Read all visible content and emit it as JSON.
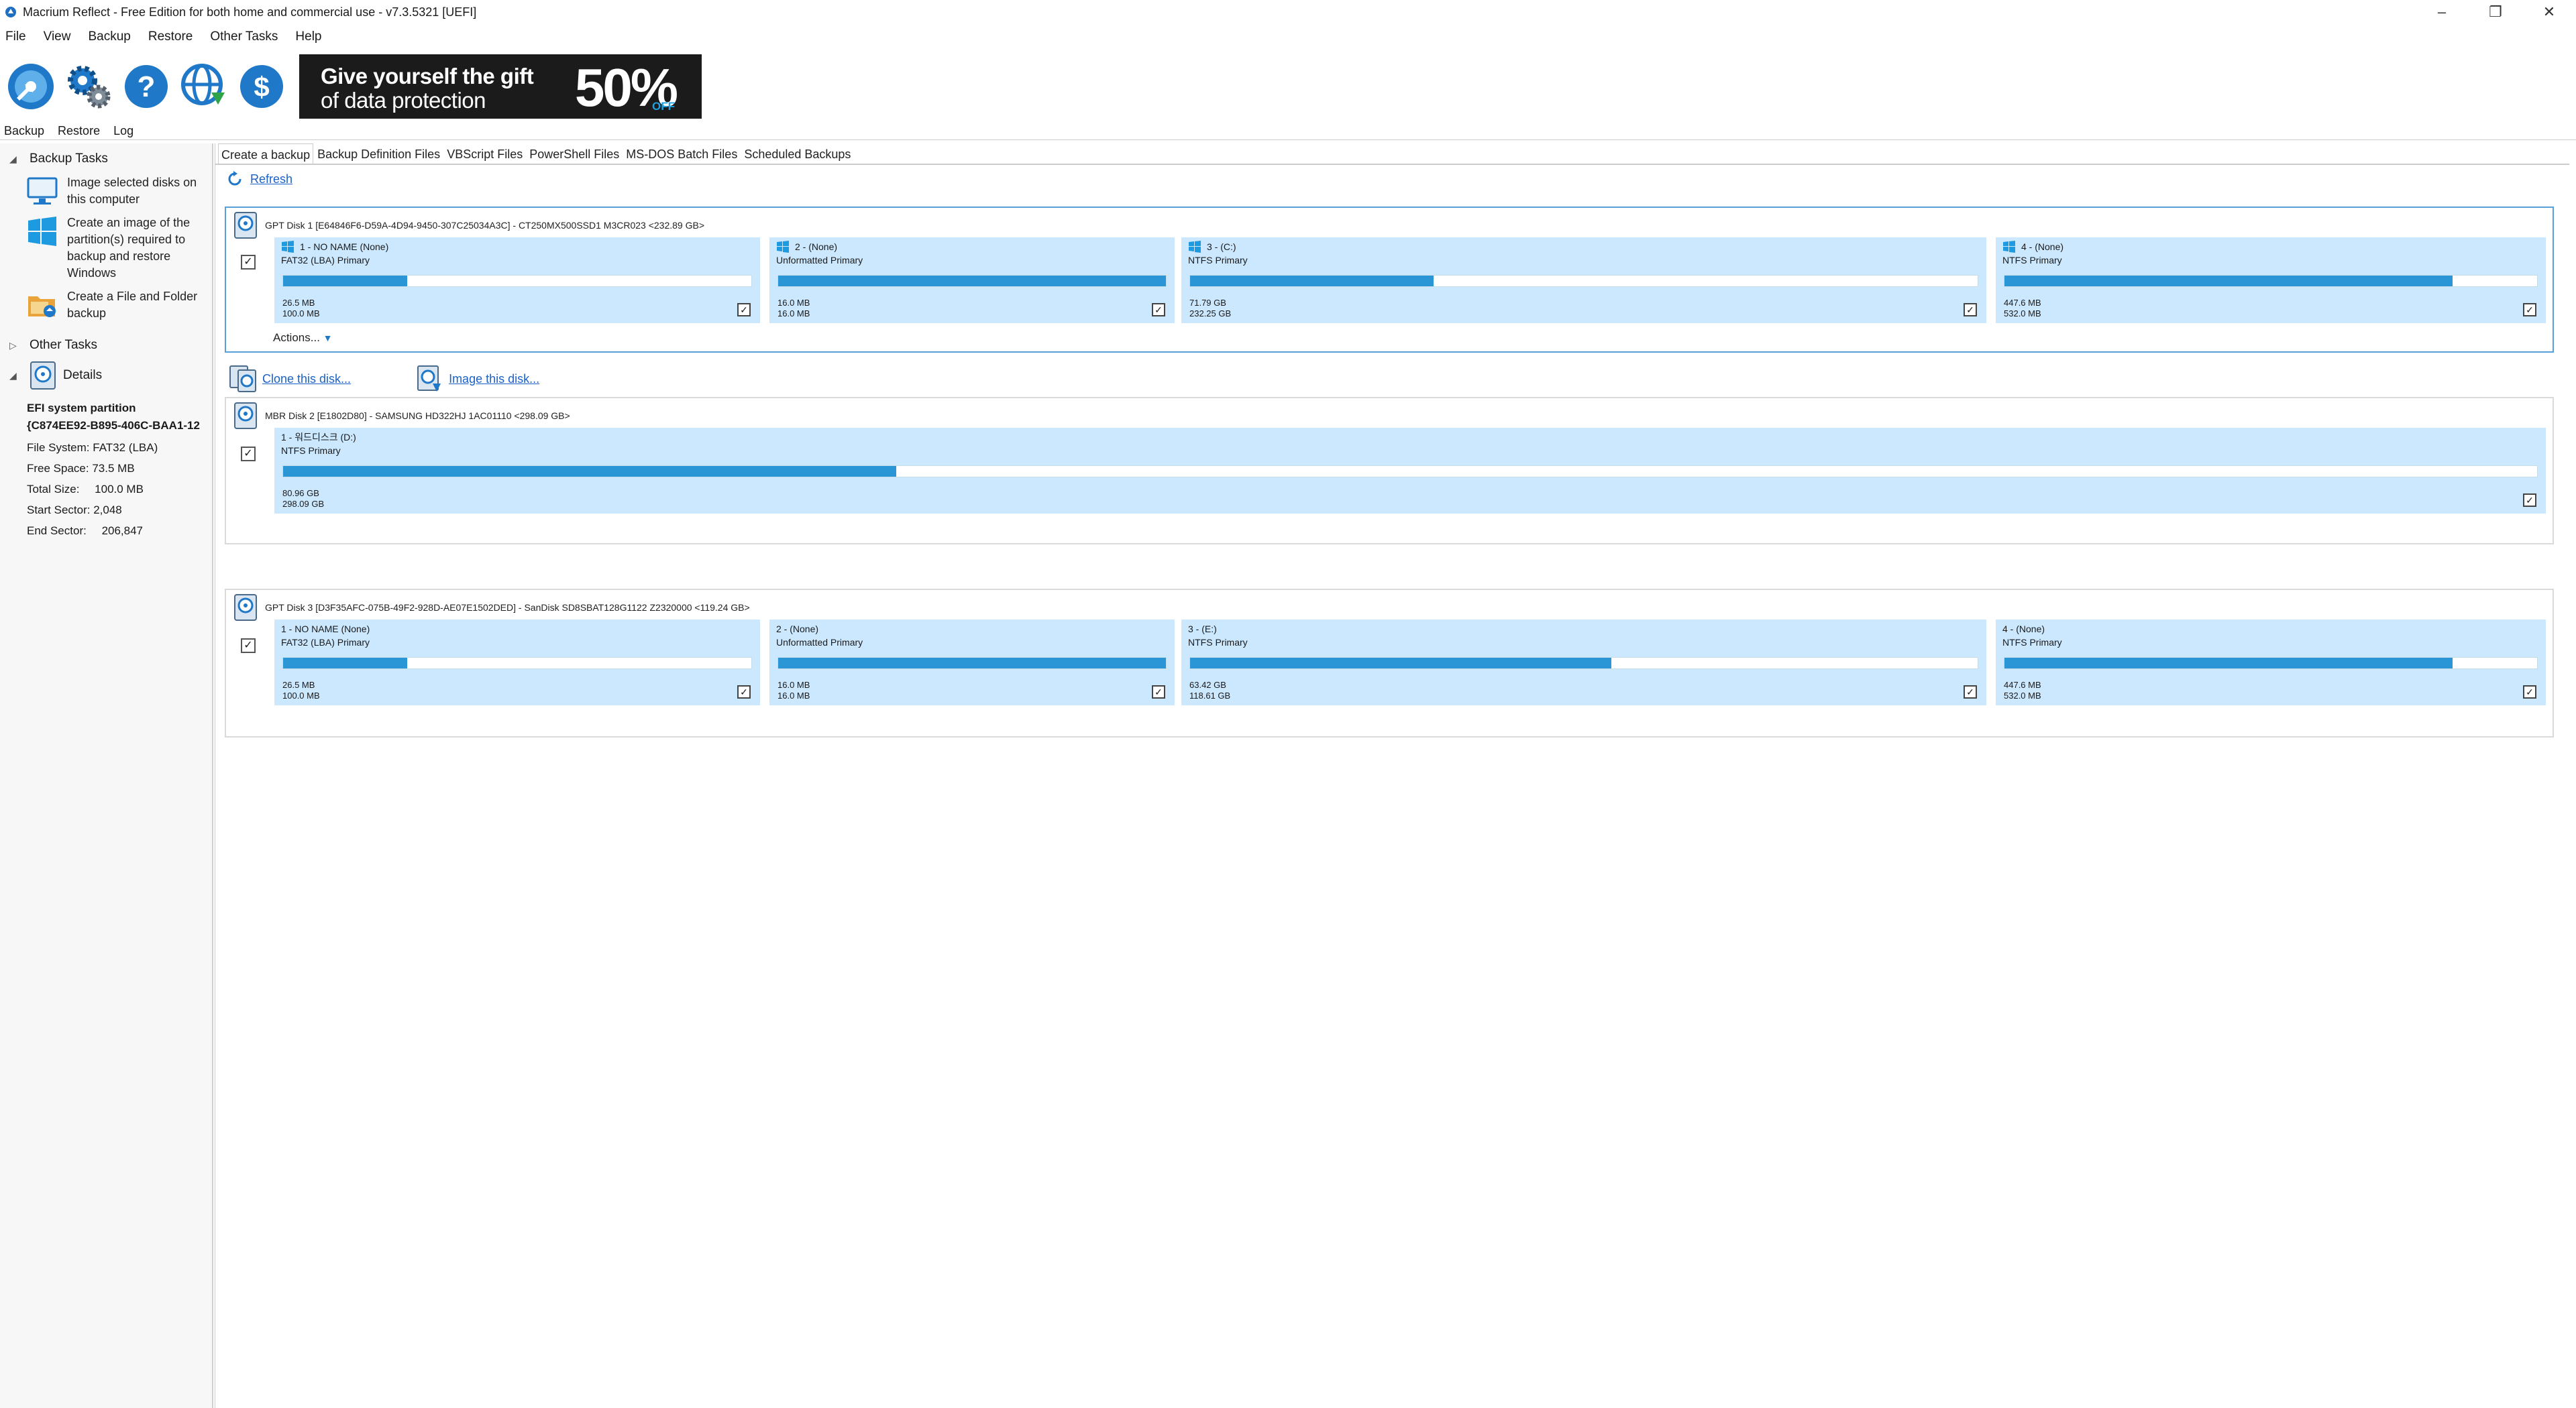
{
  "window": {
    "title": "Macrium Reflect - Free Edition for both home and commercial use - v7.3.5321  [UEFI]",
    "minimize": "–",
    "restore": "❐",
    "close": "✕"
  },
  "menu": [
    "File",
    "View",
    "Backup",
    "Restore",
    "Other Tasks",
    "Help"
  ],
  "banner": {
    "line1": "Give yourself the gift",
    "line2": "of data protection",
    "percent": "50%",
    "off": "OFF"
  },
  "view_tabs": [
    "Backup",
    "Restore",
    "Log"
  ],
  "left": {
    "backup_tasks_header": "Backup Tasks",
    "tasks": [
      {
        "label": "Image selected disks on this computer",
        "icon": "monitor-icon"
      },
      {
        "label": "Create an image of the partition(s) required to backup and restore Windows",
        "icon": "windows-logo-icon"
      },
      {
        "label": "Create a File and Folder backup",
        "icon": "folder-icon"
      }
    ],
    "other_tasks_header": "Other Tasks",
    "details_header": "Details",
    "details": {
      "title": "EFI system partition",
      "guid": "{C874EE92-B895-406C-BAA1-12",
      "rows": [
        {
          "label": "File System:",
          "value": "FAT32 (LBA)"
        },
        {
          "label": "Free Space:",
          "value": "73.5 MB"
        },
        {
          "label": "Total Size:",
          "value": "100.0 MB"
        },
        {
          "label": "Start Sector:",
          "value": "2,048"
        },
        {
          "label": "End Sector:",
          "value": "206,847"
        }
      ]
    }
  },
  "tabs": [
    "Create a backup",
    "Backup Definition Files",
    "VBScript Files",
    "PowerShell Files",
    "MS-DOS Batch Files",
    "Scheduled Backups"
  ],
  "refresh_label": "Refresh",
  "actions_label": "Actions...",
  "clone_label": "Clone this disk...",
  "image_label": "Image this disk...",
  "check": "✓",
  "accent": "#2a96d5",
  "disks": [
    {
      "header": "GPT Disk 1 [E64846F6-D59A-4D94-9450-307C25034A3C] - CT250MX500SSD1 M3CR023  <232.89 GB>",
      "partitions": [
        {
          "name": "1 - NO NAME (None)",
          "type": "FAT32 (LBA) Primary",
          "used": "26.5 MB",
          "total": "100.0 MB",
          "fill": 0.265,
          "windows": true
        },
        {
          "name": "2 - (None)",
          "type": "Unformatted Primary",
          "used": "16.0 MB",
          "total": "16.0 MB",
          "fill": 1.0,
          "windows": true
        },
        {
          "name": "3 - (C:)",
          "type": "NTFS Primary",
          "used": "71.79 GB",
          "total": "232.25 GB",
          "fill": 0.309,
          "windows": true
        },
        {
          "name": "4 - (None)",
          "type": "NTFS Primary",
          "used": "447.6 MB",
          "total": "532.0 MB",
          "fill": 0.841,
          "windows": true
        }
      ]
    },
    {
      "header": "MBR Disk 2 [E1802D80] - SAMSUNG HD322HJ 1AC01110  <298.09 GB>",
      "partitions": [
        {
          "name": "1 - 워드디스크 (D:)",
          "type": "NTFS Primary",
          "used": "80.96 GB",
          "total": "298.09 GB",
          "fill": 0.272,
          "windows": false
        }
      ]
    },
    {
      "header": "GPT Disk 3 [D3F35AFC-075B-49F2-928D-AE07E1502DED] - SanDisk SD8SBAT128G1122 Z2320000  <119.24 GB>",
      "partitions": [
        {
          "name": "1 - NO NAME (None)",
          "type": "FAT32 (LBA) Primary",
          "used": "26.5 MB",
          "total": "100.0 MB",
          "fill": 0.265,
          "windows": false
        },
        {
          "name": "2 - (None)",
          "type": "Unformatted Primary",
          "used": "16.0 MB",
          "total": "16.0 MB",
          "fill": 1.0,
          "windows": false
        },
        {
          "name": "3 - (E:)",
          "type": "NTFS Primary",
          "used": "63.42 GB",
          "total": "118.61 GB",
          "fill": 0.535,
          "windows": false
        },
        {
          "name": "4 - (None)",
          "type": "NTFS Primary",
          "used": "447.6 MB",
          "total": "532.0 MB",
          "fill": 0.841,
          "windows": false
        }
      ]
    }
  ]
}
